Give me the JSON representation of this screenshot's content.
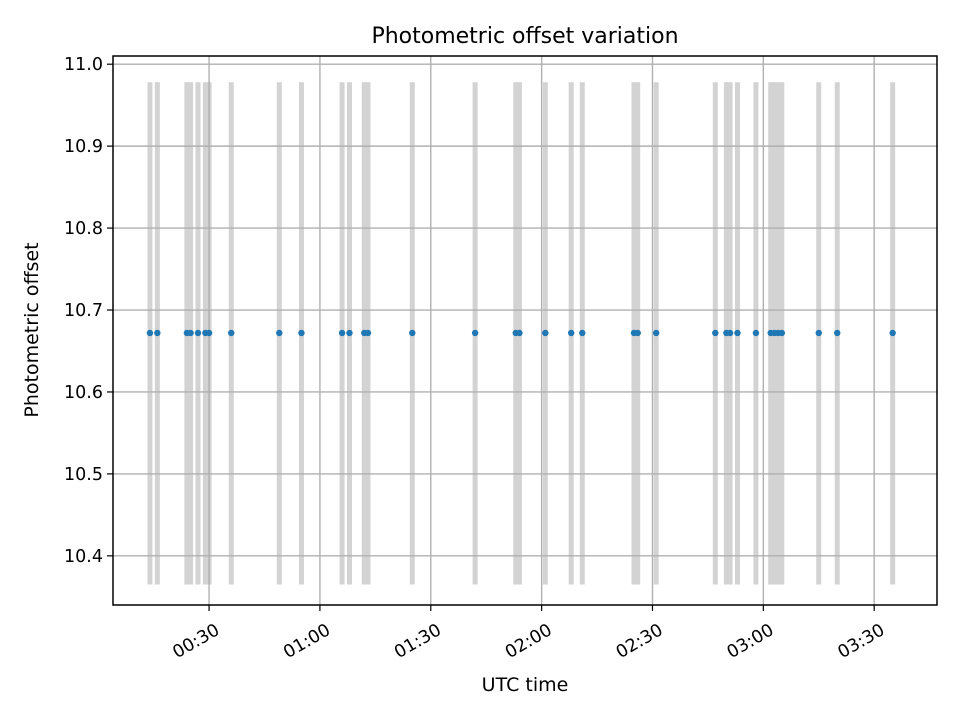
{
  "chart_data": {
    "type": "scatter",
    "title": "Photometric offset variation",
    "xlabel": "UTC time",
    "ylabel": "Photometric offset",
    "x_unit": "UTC clock time (HH:MM)",
    "xlim": [
      "00:04",
      "03:47"
    ],
    "ylim": [
      10.34,
      11.01
    ],
    "x_ticks": [
      "00:30",
      "01:00",
      "01:30",
      "02:00",
      "02:30",
      "03:00",
      "03:30"
    ],
    "y_ticks": [
      10.4,
      10.5,
      10.6,
      10.7,
      10.8,
      10.9,
      11.0
    ],
    "y_tick_labels": [
      "10.4",
      "10.5",
      "10.6",
      "10.7",
      "10.8",
      "10.9",
      "11.0"
    ],
    "grid": true,
    "legend": "none",
    "exposure_band_y_range": [
      10.365,
      10.978
    ],
    "exposure_bands_x": [
      "00:14",
      "00:16",
      "00:24",
      "00:25",
      "00:27",
      "00:29",
      "00:30",
      "00:36",
      "00:49",
      "00:55",
      "01:06",
      "01:08",
      "01:12",
      "01:13",
      "01:25",
      "01:42",
      "01:53",
      "01:54",
      "02:01",
      "02:08",
      "02:11",
      "02:25",
      "02:26",
      "02:31",
      "02:47",
      "02:50",
      "02:51",
      "02:53",
      "02:58",
      "03:02",
      "03:03",
      "03:04",
      "03:05",
      "03:15",
      "03:20",
      "03:35"
    ],
    "series": [
      {
        "color": "#1f77b4",
        "points": [
          {
            "x": "00:14",
            "y": 10.672
          },
          {
            "x": "00:16",
            "y": 10.672
          },
          {
            "x": "00:24",
            "y": 10.672
          },
          {
            "x": "00:25",
            "y": 10.672
          },
          {
            "x": "00:27",
            "y": 10.672
          },
          {
            "x": "00:29",
            "y": 10.672
          },
          {
            "x": "00:30",
            "y": 10.672
          },
          {
            "x": "00:36",
            "y": 10.672
          },
          {
            "x": "00:49",
            "y": 10.672
          },
          {
            "x": "00:55",
            "y": 10.672
          },
          {
            "x": "01:06",
            "y": 10.672
          },
          {
            "x": "01:08",
            "y": 10.672
          },
          {
            "x": "01:12",
            "y": 10.672
          },
          {
            "x": "01:13",
            "y": 10.672
          },
          {
            "x": "01:25",
            "y": 10.672
          },
          {
            "x": "01:42",
            "y": 10.672
          },
          {
            "x": "01:53",
            "y": 10.672
          },
          {
            "x": "01:54",
            "y": 10.672
          },
          {
            "x": "02:01",
            "y": 10.672
          },
          {
            "x": "02:08",
            "y": 10.672
          },
          {
            "x": "02:11",
            "y": 10.672
          },
          {
            "x": "02:25",
            "y": 10.672
          },
          {
            "x": "02:26",
            "y": 10.672
          },
          {
            "x": "02:31",
            "y": 10.672
          },
          {
            "x": "02:47",
            "y": 10.672
          },
          {
            "x": "02:50",
            "y": 10.672
          },
          {
            "x": "02:51",
            "y": 10.672
          },
          {
            "x": "02:53",
            "y": 10.672
          },
          {
            "x": "02:58",
            "y": 10.672
          },
          {
            "x": "03:02",
            "y": 10.672
          },
          {
            "x": "03:03",
            "y": 10.672
          },
          {
            "x": "03:04",
            "y": 10.672
          },
          {
            "x": "03:05",
            "y": 10.672
          },
          {
            "x": "03:15",
            "y": 10.672
          },
          {
            "x": "03:20",
            "y": 10.672
          },
          {
            "x": "03:35",
            "y": 10.672
          }
        ]
      }
    ],
    "colors": {
      "band": "#d3d3d3",
      "grid": "#b0b0b0",
      "frame": "#000000"
    }
  }
}
